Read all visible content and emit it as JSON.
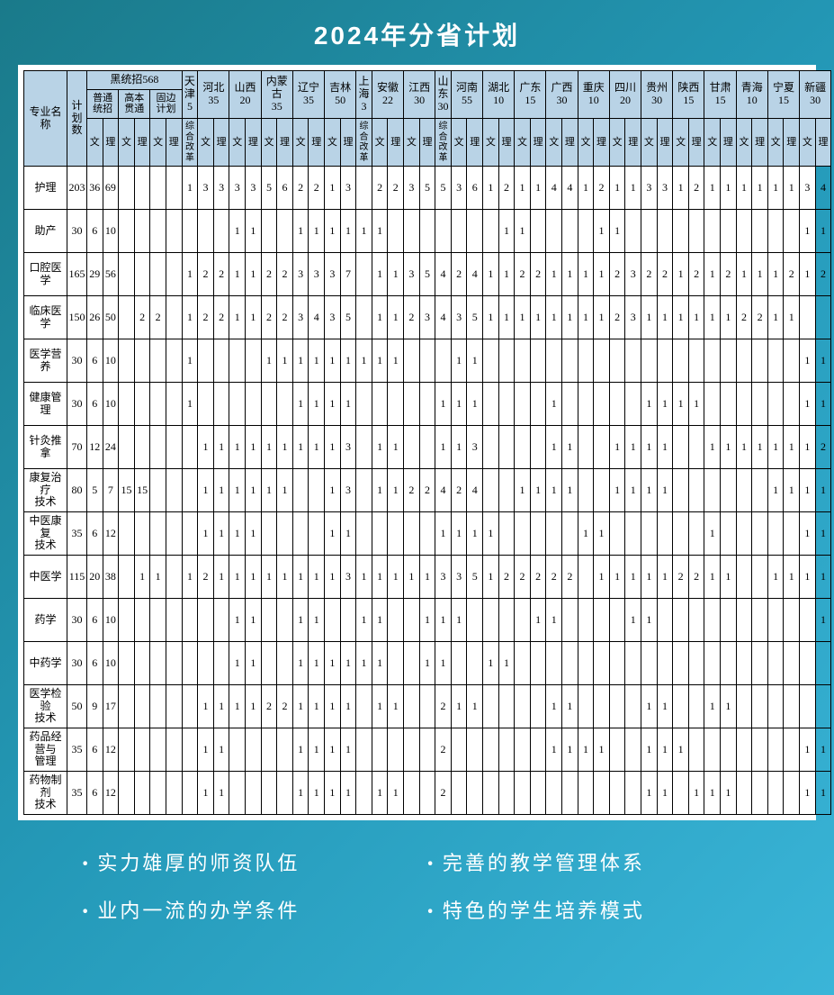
{
  "title": "2024年分省计划",
  "headers": {
    "major": "专业名称",
    "count": "计划数",
    "hei_group": "黑统招568",
    "hei_sub": [
      "普通统招",
      "高本贯通",
      "固边计划"
    ],
    "provinces": [
      {
        "name": "天津",
        "num": "5",
        "type": "reform"
      },
      {
        "name": "河北",
        "num": "35",
        "type": "wl"
      },
      {
        "name": "山西",
        "num": "20",
        "type": "wl"
      },
      {
        "name": "内蒙古",
        "num": "35",
        "type": "wl"
      },
      {
        "name": "辽宁",
        "num": "35",
        "type": "wl"
      },
      {
        "name": "吉林",
        "num": "50",
        "type": "wl"
      },
      {
        "name": "上海",
        "num": "3",
        "type": "reform"
      },
      {
        "name": "安徽",
        "num": "22",
        "type": "wl"
      },
      {
        "name": "江西",
        "num": "30",
        "type": "wl"
      },
      {
        "name": "山东",
        "num": "30",
        "type": "reform"
      },
      {
        "name": "河南",
        "num": "55",
        "type": "wl"
      },
      {
        "name": "湖北",
        "num": "10",
        "type": "wl"
      },
      {
        "name": "广东",
        "num": "15",
        "type": "wl"
      },
      {
        "name": "广西",
        "num": "30",
        "type": "wl"
      },
      {
        "name": "重庆",
        "num": "10",
        "type": "wl"
      },
      {
        "name": "四川",
        "num": "20",
        "type": "wl"
      },
      {
        "name": "贵州",
        "num": "30",
        "type": "wl"
      },
      {
        "name": "陕西",
        "num": "15",
        "type": "wl"
      },
      {
        "name": "甘肃",
        "num": "15",
        "type": "wl"
      },
      {
        "name": "青海",
        "num": "10",
        "type": "wl"
      },
      {
        "name": "宁夏",
        "num": "15",
        "type": "wl"
      },
      {
        "name": "新疆",
        "num": "30",
        "type": "wl"
      }
    ],
    "reform_label": "综合改革",
    "wen": "文",
    "li": "理"
  },
  "rows": [
    {
      "major": "护理",
      "count": "203",
      "hei": [
        "36",
        "69",
        "",
        "",
        "",
        ""
      ],
      "cells": [
        "1",
        "3",
        "3",
        "3",
        "3",
        "5",
        "6",
        "2",
        "2",
        "1",
        "3",
        "",
        "2",
        "2",
        "3",
        "5",
        "5",
        "3",
        "6",
        "1",
        "2",
        "1",
        "1",
        "4",
        "4",
        "1",
        "2",
        "1",
        "1",
        "3",
        "3",
        "1",
        "2",
        "1",
        "1",
        "1",
        "1",
        "1",
        "1",
        "3",
        "4"
      ]
    },
    {
      "major": "助产",
      "count": "30",
      "hei": [
        "6",
        "10",
        "",
        "",
        "",
        ""
      ],
      "cells": [
        "",
        "",
        "",
        "1",
        "1",
        "",
        "",
        "1",
        "1",
        "1",
        "1",
        "1",
        "1",
        "",
        "",
        "",
        "",
        "",
        "",
        "",
        "1",
        "1",
        "",
        "",
        "",
        "",
        "1",
        "1",
        "",
        "",
        "",
        "",
        "",
        "",
        "",
        "",
        "",
        "",
        "",
        "1",
        "1"
      ]
    },
    {
      "major": "口腔医学",
      "count": "165",
      "hei": [
        "29",
        "56",
        "",
        "",
        "",
        ""
      ],
      "cells": [
        "1",
        "2",
        "2",
        "1",
        "1",
        "2",
        "2",
        "3",
        "3",
        "3",
        "7",
        "",
        "1",
        "1",
        "3",
        "5",
        "4",
        "2",
        "4",
        "1",
        "1",
        "2",
        "2",
        "1",
        "1",
        "1",
        "1",
        "2",
        "3",
        "2",
        "2",
        "1",
        "2",
        "1",
        "2",
        "1",
        "1",
        "1",
        "2",
        "1",
        "2"
      ]
    },
    {
      "major": "临床医学",
      "count": "150",
      "hei": [
        "26",
        "50",
        "",
        "2",
        "2",
        ""
      ],
      "cells": [
        "1",
        "2",
        "2",
        "1",
        "1",
        "2",
        "2",
        "3",
        "4",
        "3",
        "5",
        "",
        "1",
        "1",
        "2",
        "3",
        "4",
        "3",
        "5",
        "1",
        "1",
        "1",
        "1",
        "1",
        "1",
        "1",
        "1",
        "2",
        "3",
        "1",
        "1",
        "1",
        "1",
        "1",
        "1",
        "2",
        "2",
        "1",
        "1",
        "",
        ""
      ]
    },
    {
      "major": "医学营养",
      "count": "30",
      "hei": [
        "6",
        "10",
        "",
        "",
        "",
        ""
      ],
      "cells": [
        "1",
        "",
        "",
        "",
        "",
        "1",
        "1",
        "1",
        "1",
        "1",
        "1",
        "1",
        "1",
        "1",
        "",
        "",
        "",
        "1",
        "1",
        "",
        "",
        "",
        "",
        "",
        "",
        "",
        "",
        "",
        "",
        "",
        "",
        "",
        "",
        "",
        "",
        "",
        "",
        "",
        "",
        "1",
        "1"
      ]
    },
    {
      "major": "健康管理",
      "count": "30",
      "hei": [
        "6",
        "10",
        "",
        "",
        "",
        ""
      ],
      "cells": [
        "1",
        "",
        "",
        "",
        "",
        "",
        "",
        "1",
        "1",
        "1",
        "1",
        "",
        "",
        "",
        "",
        "",
        "1",
        "1",
        "1",
        "",
        "",
        "",
        "",
        "1",
        "",
        "",
        "",
        "",
        "",
        "1",
        "1",
        "1",
        "1",
        "",
        "",
        "",
        "",
        "",
        "",
        "1",
        "1"
      ]
    },
    {
      "major": "针灸推拿",
      "count": "70",
      "hei": [
        "12",
        "24",
        "",
        "",
        "",
        ""
      ],
      "cells": [
        "",
        "1",
        "1",
        "1",
        "1",
        "1",
        "1",
        "1",
        "1",
        "1",
        "3",
        "",
        "1",
        "1",
        "",
        "",
        "1",
        "1",
        "3",
        "",
        "",
        "",
        "",
        "1",
        "1",
        "",
        "",
        "1",
        "1",
        "1",
        "1",
        "",
        "",
        "1",
        "1",
        "1",
        "1",
        "1",
        "1",
        "1",
        "2"
      ]
    },
    {
      "major": "康复治疗技术",
      "count": "80",
      "hei": [
        "5",
        "7",
        "15",
        "15",
        "",
        ""
      ],
      "cells": [
        "",
        "1",
        "1",
        "1",
        "1",
        "1",
        "1",
        "",
        "",
        "1",
        "3",
        "",
        "1",
        "1",
        "2",
        "2",
        "4",
        "2",
        "4",
        "",
        "",
        "1",
        "1",
        "1",
        "1",
        "",
        "",
        "1",
        "1",
        "1",
        "1",
        "",
        "",
        "",
        "",
        "",
        "",
        "1",
        "1",
        "1",
        "1"
      ]
    },
    {
      "major": "中医康复技术",
      "count": "35",
      "hei": [
        "6",
        "12",
        "",
        "",
        "",
        ""
      ],
      "cells": [
        "",
        "1",
        "1",
        "1",
        "1",
        "",
        "",
        "",
        "",
        "1",
        "1",
        "",
        "",
        "",
        "",
        "",
        "1",
        "1",
        "1",
        "1",
        "",
        "",
        "",
        "",
        "",
        "1",
        "1",
        "",
        "",
        "",
        "",
        "",
        "",
        "1",
        "",
        "",
        "",
        "",
        "",
        "1",
        "1",
        "1",
        "1"
      ]
    },
    {
      "major": "中医学",
      "count": "115",
      "hei": [
        "20",
        "38",
        "",
        "1",
        "1",
        ""
      ],
      "cells": [
        "1",
        "2",
        "1",
        "1",
        "1",
        "1",
        "1",
        "1",
        "1",
        "1",
        "3",
        "1",
        "1",
        "1",
        "1",
        "1",
        "3",
        "3",
        "5",
        "1",
        "2",
        "2",
        "2",
        "2",
        "2",
        "",
        "1",
        "1",
        "1",
        "1",
        "1",
        "2",
        "2",
        "1",
        "1",
        "",
        "",
        "1",
        "1",
        "1",
        "1"
      ]
    },
    {
      "major": "药学",
      "count": "30",
      "hei": [
        "6",
        "10",
        "",
        "",
        "",
        ""
      ],
      "cells": [
        "",
        "",
        "",
        "1",
        "1",
        "",
        "",
        "1",
        "1",
        "",
        "",
        "1",
        "1",
        "",
        "",
        "1",
        "1",
        "1",
        "",
        "",
        "",
        "",
        "1",
        "1",
        "",
        "",
        "",
        "",
        "1",
        "1",
        "",
        "",
        "",
        "",
        "",
        "",
        "",
        "",
        "",
        "",
        "1"
      ]
    },
    {
      "major": "中药学",
      "count": "30",
      "hei": [
        "6",
        "10",
        "",
        "",
        "",
        ""
      ],
      "cells": [
        "",
        "",
        "",
        "1",
        "1",
        "",
        "",
        "1",
        "1",
        "1",
        "1",
        "1",
        "1",
        "",
        "",
        "1",
        "1",
        "",
        "",
        "1",
        "1",
        "",
        "",
        "",
        "",
        "",
        "",
        "",
        "",
        "",
        "",
        "",
        "",
        "",
        "",
        "",
        "",
        "",
        "",
        "",
        ""
      ]
    },
    {
      "major": "医学检验技术",
      "count": "50",
      "hei": [
        "9",
        "17",
        "",
        "",
        "",
        ""
      ],
      "cells": [
        "",
        "1",
        "1",
        "1",
        "1",
        "2",
        "2",
        "1",
        "1",
        "1",
        "1",
        "",
        "1",
        "1",
        "",
        "",
        "2",
        "1",
        "1",
        "",
        "",
        "",
        "",
        "1",
        "1",
        "",
        "",
        "",
        "",
        "1",
        "1",
        "",
        "",
        "1",
        "1",
        "",
        "",
        "",
        "",
        "",
        ""
      ]
    },
    {
      "major": "药品经营与管理",
      "count": "35",
      "hei": [
        "6",
        "12",
        "",
        "",
        "",
        ""
      ],
      "cells": [
        "",
        "1",
        "1",
        "",
        "",
        "",
        "",
        "1",
        "1",
        "1",
        "1",
        "",
        "",
        "",
        "",
        "",
        "2",
        "",
        "",
        "",
        "",
        "",
        "",
        "1",
        "1",
        "1",
        "1",
        "",
        "",
        "1",
        "1",
        "1",
        "",
        "",
        "",
        "",
        "",
        "",
        "",
        "1",
        "1"
      ]
    },
    {
      "major": "药物制剂技术",
      "count": "35",
      "hei": [
        "6",
        "12",
        "",
        "",
        "",
        ""
      ],
      "cells": [
        "",
        "1",
        "1",
        "",
        "",
        "",
        "",
        "1",
        "1",
        "1",
        "1",
        "",
        "1",
        "1",
        "",
        "",
        "2",
        "",
        "",
        "",
        "",
        "",
        "",
        "",
        "",
        "",
        "",
        "",
        "",
        "1",
        "1",
        "",
        "1",
        "1",
        "1",
        "",
        "",
        "",
        "",
        "1",
        "1"
      ]
    }
  ],
  "features": [
    "实力雄厚的师资队伍",
    "完善的教学管理体系",
    "业内一流的办学条件",
    "特色的学生培养模式"
  ]
}
